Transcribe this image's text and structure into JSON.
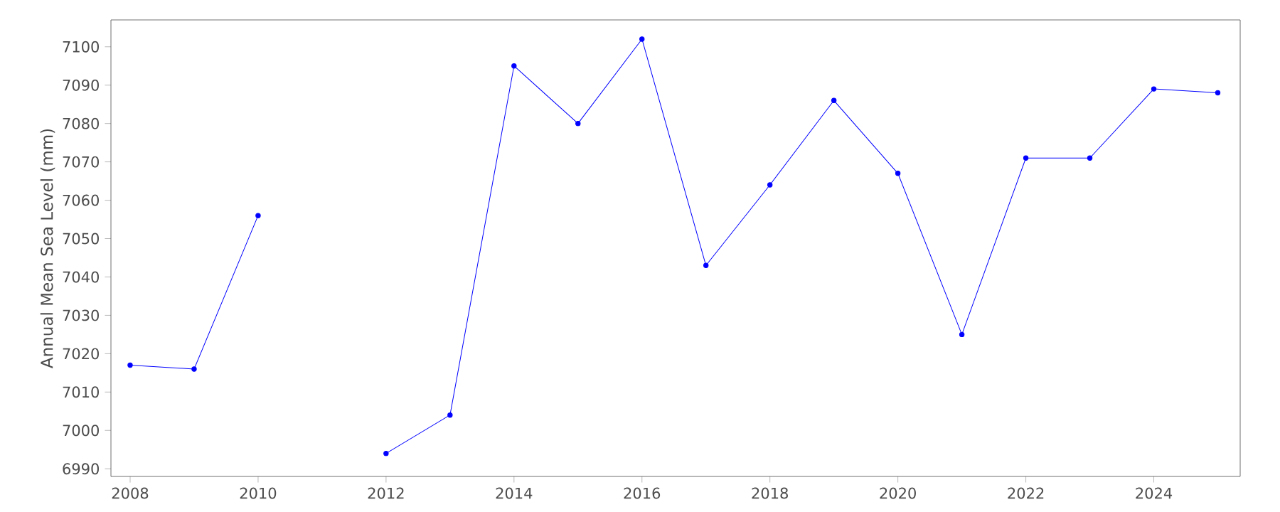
{
  "chart_data": {
    "type": "line",
    "ylabel": "Annual Mean Sea Level (mm)",
    "x": [
      2008,
      2009,
      2010,
      2011,
      2012,
      2013,
      2014,
      2015,
      2016,
      2017,
      2018,
      2019,
      2020,
      2021,
      2022,
      2023,
      2024,
      2025
    ],
    "series": [
      {
        "color": "#0000ff",
        "values": [
          7017,
          7016,
          7056,
          null,
          6994,
          7004,
          7095,
          7080,
          7102,
          7043,
          7064,
          7086,
          7067,
          7025,
          7071,
          7071,
          7089,
          7088
        ]
      }
    ],
    "xlim": [
      2007.7,
      2025.35
    ],
    "ylim": [
      6988,
      7107
    ],
    "xticks": [
      2008,
      2010,
      2012,
      2014,
      2016,
      2018,
      2020,
      2022,
      2024
    ],
    "yticks": [
      6990,
      7000,
      7010,
      7020,
      7030,
      7040,
      7050,
      7060,
      7070,
      7080,
      7090,
      7100
    ],
    "grid": false,
    "marker": "circle",
    "line_style": "solid"
  }
}
